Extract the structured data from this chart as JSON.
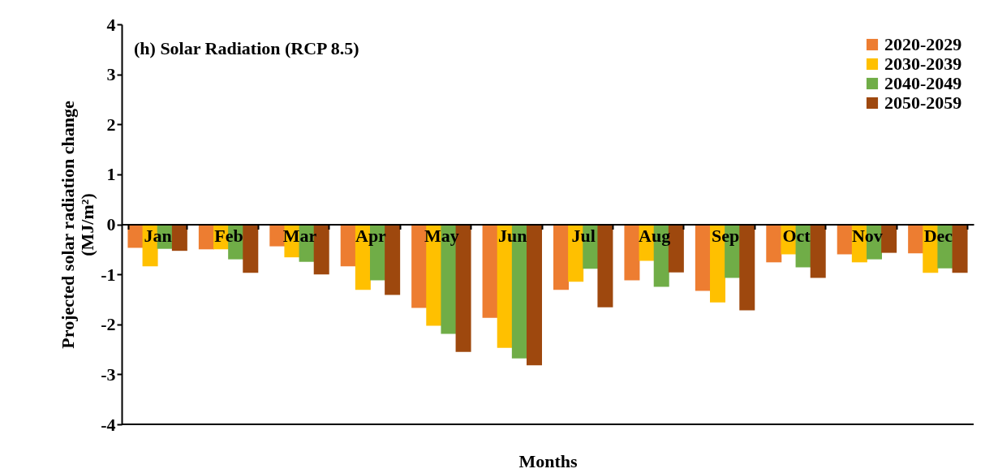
{
  "chart_data": {
    "type": "bar",
    "title": "(h) Solar Radiation (RCP 8.5)",
    "xlabel": "Months",
    "ylabel": "Projected solar radiation change (MJ/m²)",
    "categories": [
      "Jan",
      "Feb",
      "Mar",
      "Apr",
      "May",
      "Jun",
      "Jul",
      "Aug",
      "Sep",
      "Oct",
      "Nov",
      "Dec"
    ],
    "series": [
      {
        "name": "2020-2029",
        "color": "#ed7d31",
        "values": [
          -0.47,
          -0.5,
          -0.44,
          -0.84,
          -1.67,
          -1.87,
          -1.31,
          -1.12,
          -1.33,
          -0.76,
          -0.6,
          -0.58
        ]
      },
      {
        "name": "2030-2039",
        "color": "#ffc000",
        "values": [
          -0.84,
          -0.5,
          -0.66,
          -1.31,
          -2.03,
          -2.47,
          -1.15,
          -0.73,
          -1.56,
          -0.6,
          -0.76,
          -0.97
        ]
      },
      {
        "name": "2040-2049",
        "color": "#70ad47",
        "values": [
          -0.49,
          -0.7,
          -0.75,
          -1.12,
          -2.19,
          -2.68,
          -0.89,
          -1.25,
          -1.07,
          -0.86,
          -0.7,
          -0.88
        ]
      },
      {
        "name": "2050-2059",
        "color": "#9e480e",
        "values": [
          -0.53,
          -0.97,
          -1.0,
          -1.41,
          -2.55,
          -2.82,
          -1.66,
          -0.96,
          -1.72,
          -1.07,
          -0.57,
          -0.97
        ]
      }
    ],
    "ylim": [
      -4,
      4
    ],
    "yticks": [
      -4,
      -3,
      -2,
      -1,
      0,
      1,
      2,
      3,
      4
    ],
    "grid": false,
    "legend": "top right"
  }
}
